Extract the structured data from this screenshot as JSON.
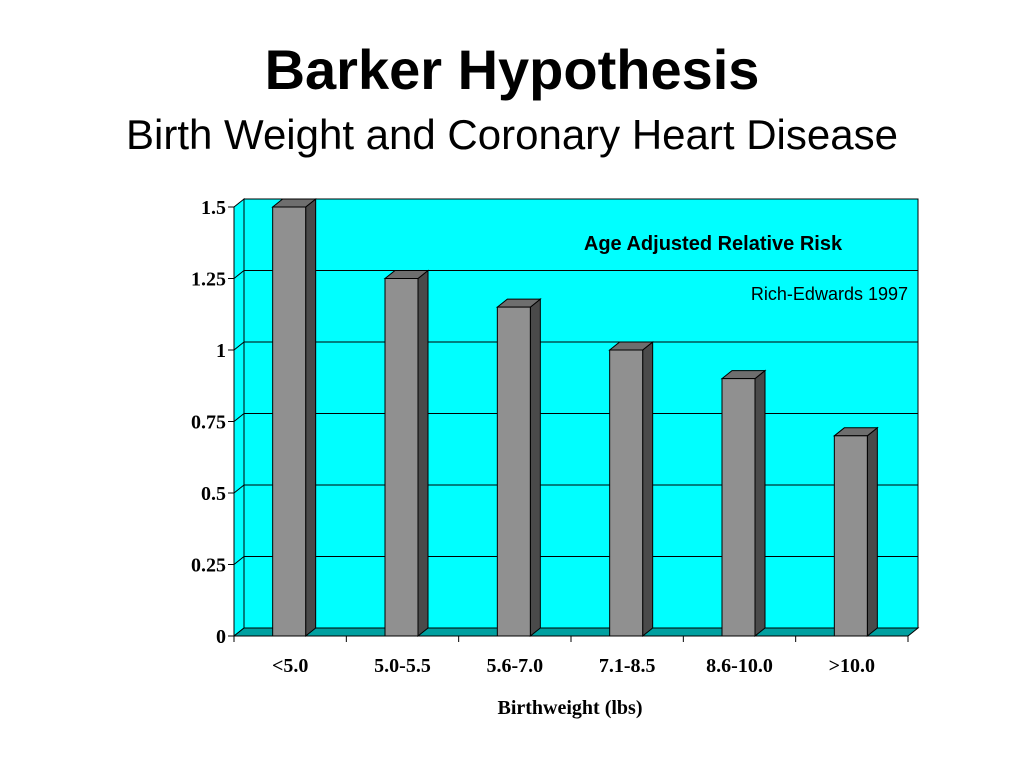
{
  "slide": {
    "title": "Barker Hypothesis",
    "subtitle": "Birth Weight and Coronary Heart Disease"
  },
  "chart_data": {
    "type": "bar",
    "categories": [
      "<5.0",
      "5.0-5.5",
      "5.6-7.0",
      "7.1-8.5",
      "8.6-10.0",
      ">10.0"
    ],
    "values": [
      1.5,
      1.25,
      1.15,
      1.0,
      0.9,
      0.7
    ],
    "title": "",
    "xlabel": "Birthweight (lbs)",
    "ylabel": "",
    "ylim": [
      0,
      1.5
    ],
    "yticks": [
      0,
      0.25,
      0.5,
      0.75,
      1,
      1.25,
      1.5
    ],
    "ytick_labels": [
      "0",
      "0.25",
      "0.5",
      "0.75",
      "1",
      "1.25",
      "1.5"
    ],
    "grid": true,
    "annotations": [
      "Age Adjusted Relative Risk",
      "Rich-Edwards 1997"
    ],
    "colors": {
      "plot_background": "#00FFFF",
      "bar_front": "#909090",
      "bar_side": "#4a4a4a",
      "bar_top": "#6e6e6e",
      "floor": "#00A0A0"
    }
  }
}
